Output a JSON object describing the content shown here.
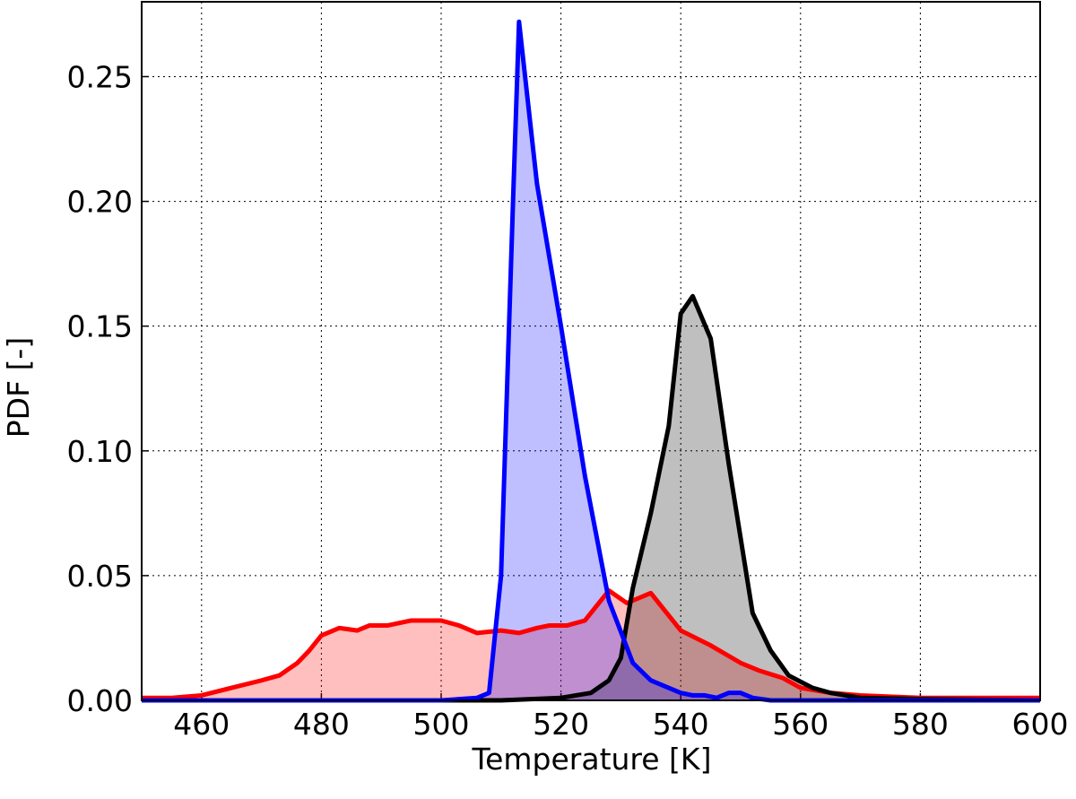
{
  "chart_data": {
    "type": "line",
    "xlabel": "Temperature [K]",
    "ylabel": "PDF [-]",
    "xlim": [
      450,
      600
    ],
    "ylim": [
      0,
      0.28
    ],
    "xticks": [
      460,
      480,
      500,
      520,
      540,
      560,
      580,
      600
    ],
    "yticks": [
      {
        "value": 0,
        "label": "0.00"
      },
      {
        "value": 0.05,
        "label": "0.05"
      },
      {
        "value": 0.1,
        "label": "0.10"
      },
      {
        "value": 0.15,
        "label": "0.15"
      },
      {
        "value": 0.2,
        "label": "0.20"
      },
      {
        "value": 0.25,
        "label": "0.25"
      }
    ],
    "grid": true,
    "fill_alpha": 0.25,
    "series": [
      {
        "color": "#ff0000",
        "x": [
          450,
          455,
          460,
          465,
          470,
          473,
          476,
          478,
          480,
          483,
          486,
          488,
          491,
          495,
          500,
          503,
          506,
          510,
          513,
          516,
          518,
          521,
          524,
          528,
          531,
          535,
          537,
          540,
          545,
          550,
          553,
          557,
          560,
          565,
          570,
          580,
          590,
          600
        ],
        "values": [
          0.001,
          0.001,
          0.002,
          0.005,
          0.008,
          0.01,
          0.015,
          0.02,
          0.026,
          0.029,
          0.028,
          0.03,
          0.03,
          0.032,
          0.032,
          0.03,
          0.027,
          0.028,
          0.027,
          0.029,
          0.03,
          0.03,
          0.032,
          0.044,
          0.039,
          0.043,
          0.037,
          0.028,
          0.022,
          0.015,
          0.012,
          0.009,
          0.005,
          0.003,
          0.002,
          0.001,
          0.001,
          0.001
        ]
      },
      {
        "color": "#000000",
        "x": [
          450,
          510,
          520,
          525,
          528,
          530,
          532,
          535,
          538,
          540,
          542,
          545,
          548,
          552,
          555,
          558,
          562,
          565,
          570,
          580,
          600
        ],
        "values": [
          0,
          0,
          0.001,
          0.003,
          0.008,
          0.017,
          0.045,
          0.075,
          0.11,
          0.155,
          0.162,
          0.145,
          0.095,
          0.035,
          0.02,
          0.01,
          0.005,
          0.003,
          0.001,
          0.0005,
          0
        ]
      },
      {
        "color": "#0000ff",
        "x": [
          450,
          500,
          506,
          508,
          510,
          512,
          513,
          516,
          520,
          524,
          528,
          532,
          535,
          540,
          542,
          544,
          546,
          548,
          550,
          552,
          555,
          600
        ],
        "values": [
          0,
          0,
          0.001,
          0.003,
          0.05,
          0.2,
          0.272,
          0.207,
          0.15,
          0.09,
          0.04,
          0.015,
          0.008,
          0.003,
          0.002,
          0.002,
          0.001,
          0.003,
          0.003,
          0.001,
          0,
          0
        ]
      }
    ]
  }
}
